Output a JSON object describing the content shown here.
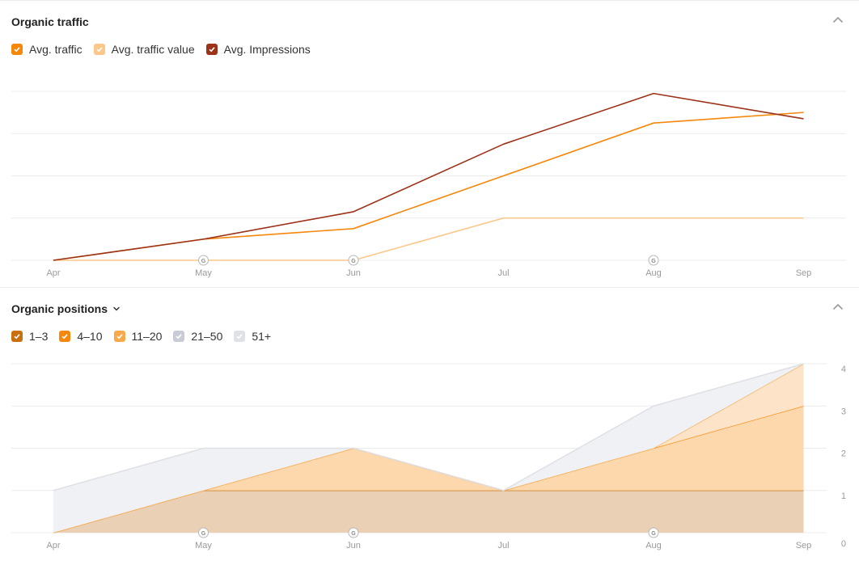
{
  "traffic_panel": {
    "title": "Organic traffic",
    "legend": [
      {
        "label": "Avg. traffic",
        "color": "#f5870a"
      },
      {
        "label": "Avg. traffic value",
        "color": "#fcc78a"
      },
      {
        "label": "Avg. Impressions",
        "color": "#9c3218"
      }
    ]
  },
  "positions_panel": {
    "title": "Organic positions",
    "legend": [
      {
        "label": "1–3",
        "color": "#c8700e"
      },
      {
        "label": "4–10",
        "color": "#f5870a"
      },
      {
        "label": "11–20",
        "color": "#f8a94a"
      },
      {
        "label": "21–50",
        "color": "#c9ccd6"
      },
      {
        "label": "51+",
        "color": "#dfe1e7"
      }
    ]
  },
  "chart_data": [
    {
      "type": "line",
      "title": "Organic traffic",
      "x": [
        "Apr",
        "May",
        "Jun",
        "Jul",
        "Aug",
        "Sep"
      ],
      "google_update_markers": [
        "May",
        "Jun",
        "Aug"
      ],
      "ylim": [
        0,
        4
      ],
      "grid": true,
      "series": [
        {
          "name": "Avg. traffic",
          "color": "#f5870a",
          "values": [
            0,
            0.5,
            0.75,
            2.0,
            3.25,
            3.5
          ]
        },
        {
          "name": "Avg. traffic value",
          "color": "#fcc78a",
          "values": [
            0,
            0,
            0,
            1.0,
            1.0,
            1.0
          ]
        },
        {
          "name": "Avg. Impressions",
          "color": "#9c3218",
          "values": [
            0,
            0.5,
            1.15,
            2.75,
            3.95,
            3.35
          ]
        }
      ]
    },
    {
      "type": "area",
      "title": "Organic positions",
      "x": [
        "Apr",
        "May",
        "Jun",
        "Jul",
        "Aug",
        "Sep"
      ],
      "google_update_markers": [
        "May",
        "Jun",
        "Aug"
      ],
      "y_ticks": [
        "0",
        "1",
        "2",
        "3",
        "4"
      ],
      "ylim": [
        0,
        4
      ],
      "grid": true,
      "stacked": true,
      "series": [
        {
          "name": "1–3",
          "color": "#c8700e",
          "values": [
            0,
            1,
            1,
            1,
            1,
            1
          ]
        },
        {
          "name": "4–10",
          "color": "#f5870a",
          "values": [
            0,
            0,
            1,
            0,
            1,
            2
          ]
        },
        {
          "name": "11–20",
          "color": "#f8a94a",
          "values": [
            0,
            0,
            0,
            0,
            0,
            1
          ]
        },
        {
          "name": "21–50",
          "color": "#c9ccd6",
          "values": [
            1,
            1,
            0,
            0,
            1,
            0
          ]
        },
        {
          "name": "51+",
          "color": "#dfe1e7",
          "values": [
            0,
            0,
            0,
            0,
            0,
            0
          ]
        }
      ]
    }
  ]
}
